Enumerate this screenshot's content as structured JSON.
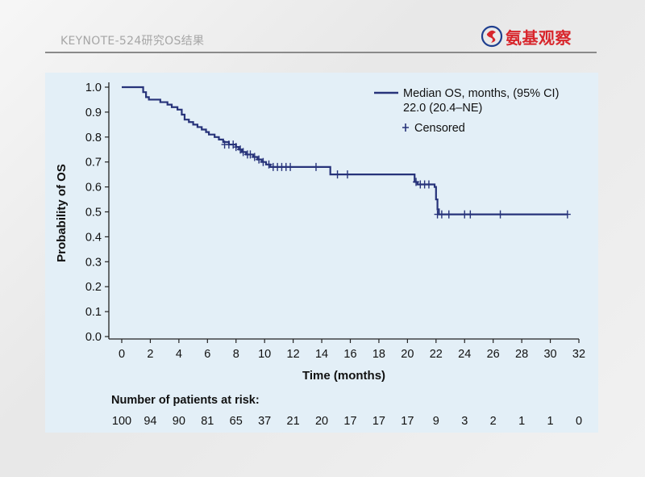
{
  "header": {
    "title": "KEYNOTE-524研究OS结果",
    "logo_text": "氨基观察"
  },
  "colors": {
    "series": "#27337a",
    "axis": "#222222",
    "logo": "#d8262c"
  },
  "chart_data": {
    "type": "line",
    "subtype": "kaplan-meier step",
    "xlabel": "Time (months)",
    "ylabel": "Probability of OS",
    "xlim": [
      0,
      32
    ],
    "ylim": [
      0,
      1.0
    ],
    "xticks": [
      "0",
      "2",
      "4",
      "6",
      "8",
      "10",
      "12",
      "14",
      "16",
      "18",
      "20",
      "22",
      "24",
      "26",
      "28",
      "30",
      "32"
    ],
    "yticks": [
      "0.0",
      "0.1",
      "0.2",
      "0.3",
      "0.4",
      "0.5",
      "0.6",
      "0.7",
      "0.8",
      "0.9",
      "1.0"
    ],
    "grid": false,
    "legend": {
      "placement": "top-right",
      "line_label": "Median OS, months, (95% CI)",
      "line_value": "22.0 (20.4–NE)",
      "censor_label": "Censored"
    },
    "series": [
      {
        "steps": [
          [
            0,
            1.0
          ],
          [
            1.3,
            1.0
          ],
          [
            1.5,
            0.98
          ],
          [
            1.7,
            0.96
          ],
          [
            1.9,
            0.95
          ],
          [
            2.7,
            0.94
          ],
          [
            3.2,
            0.93
          ],
          [
            3.5,
            0.92
          ],
          [
            3.9,
            0.91
          ],
          [
            4.2,
            0.89
          ],
          [
            4.4,
            0.87
          ],
          [
            4.7,
            0.86
          ],
          [
            5.0,
            0.85
          ],
          [
            5.3,
            0.84
          ],
          [
            5.6,
            0.83
          ],
          [
            5.9,
            0.82
          ],
          [
            6.1,
            0.81
          ],
          [
            6.5,
            0.8
          ],
          [
            6.8,
            0.79
          ],
          [
            7.1,
            0.78
          ],
          [
            7.5,
            0.77
          ],
          [
            8.0,
            0.76
          ],
          [
            8.2,
            0.75
          ],
          [
            8.4,
            0.74
          ],
          [
            8.7,
            0.73
          ],
          [
            9.2,
            0.72
          ],
          [
            9.5,
            0.71
          ],
          [
            9.8,
            0.7
          ],
          [
            10.1,
            0.69
          ],
          [
            10.4,
            0.68
          ],
          [
            14.6,
            0.65
          ],
          [
            20.5,
            0.62
          ],
          [
            20.7,
            0.61
          ],
          [
            21.9,
            0.6
          ],
          [
            22.0,
            0.55
          ],
          [
            22.1,
            0.51
          ],
          [
            22.2,
            0.49
          ],
          [
            31.2,
            0.49
          ]
        ],
        "censored": [
          [
            7.2,
            0.77
          ],
          [
            7.5,
            0.77
          ],
          [
            7.8,
            0.77
          ],
          [
            8.0,
            0.76
          ],
          [
            8.3,
            0.75
          ],
          [
            8.5,
            0.74
          ],
          [
            8.8,
            0.73
          ],
          [
            9.0,
            0.73
          ],
          [
            9.3,
            0.72
          ],
          [
            9.6,
            0.71
          ],
          [
            9.9,
            0.7
          ],
          [
            10.3,
            0.69
          ],
          [
            10.6,
            0.68
          ],
          [
            10.9,
            0.68
          ],
          [
            11.2,
            0.68
          ],
          [
            11.5,
            0.68
          ],
          [
            11.8,
            0.68
          ],
          [
            13.6,
            0.68
          ],
          [
            15.1,
            0.65
          ],
          [
            15.8,
            0.65
          ],
          [
            20.6,
            0.62
          ],
          [
            20.9,
            0.61
          ],
          [
            21.2,
            0.61
          ],
          [
            21.5,
            0.61
          ],
          [
            22.1,
            0.49
          ],
          [
            22.4,
            0.49
          ],
          [
            22.9,
            0.49
          ],
          [
            24.0,
            0.49
          ],
          [
            24.4,
            0.49
          ],
          [
            26.5,
            0.49
          ],
          [
            31.2,
            0.49
          ]
        ]
      }
    ],
    "risk_table": {
      "title": "Number of patients at risk:",
      "values": [
        "100",
        "94",
        "90",
        "81",
        "65",
        "37",
        "21",
        "20",
        "17",
        "17",
        "17",
        "9",
        "3",
        "2",
        "1",
        "1",
        "0"
      ]
    }
  }
}
